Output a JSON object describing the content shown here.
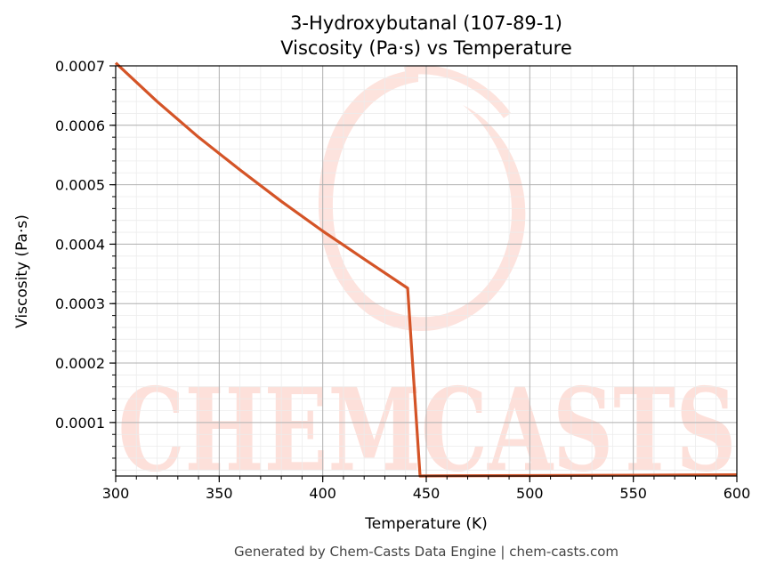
{
  "chart_data": {
    "type": "line",
    "title": "3-Hydroxybutanal (107-89-1)",
    "subtitle": "Viscosity (Pa·s) vs Temperature",
    "xlabel": "Temperature (K)",
    "ylabel": "Viscosity (Pa·s)",
    "xlim": [
      300,
      600
    ],
    "ylim": [
      1e-05,
      0.0007
    ],
    "x_ticks": [
      "300",
      "350",
      "400",
      "450",
      "500",
      "550",
      "600"
    ],
    "y_ticks": [
      "0.0001",
      "0.0002",
      "0.0003",
      "0.0004",
      "0.0005",
      "0.0006",
      "0.0007"
    ],
    "grid": true,
    "series": [
      {
        "color": "#d45427",
        "x": [
          300,
          320,
          340,
          360,
          380,
          400,
          420,
          441,
          447,
          450,
          500,
          550,
          600
        ],
        "y": [
          0.000705,
          0.00064,
          0.00058,
          0.000525,
          0.000472,
          0.000422,
          0.000375,
          0.000326,
          1e-05,
          1.02e-05,
          1.08e-05,
          1.14e-05,
          1.2e-05
        ]
      }
    ]
  },
  "watermark": {
    "text": "CHEMCASTS",
    "color": "#fde0da"
  },
  "footer": "Generated by Chem-Casts Data Engine | chem-casts.com"
}
